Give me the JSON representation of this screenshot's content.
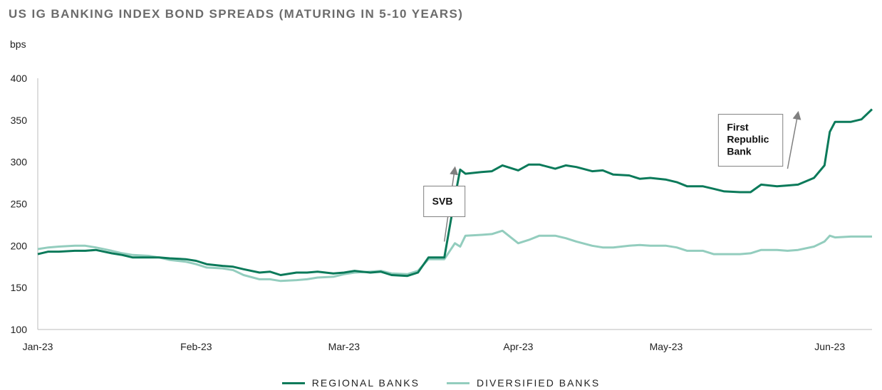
{
  "chart_data": {
    "type": "line",
    "title": "US IG BANKING INDEX BOND SPREADS (MATURING IN 5-10 YEARS)",
    "ylabel": "bps",
    "ylim": [
      100,
      400
    ],
    "yticks": [
      100,
      150,
      200,
      250,
      300,
      350,
      400
    ],
    "xlim": [
      "2023-01-02",
      "2023-06-09"
    ],
    "x_tick_labels": [
      {
        "date": "2023-01-02",
        "label": "Jan-23"
      },
      {
        "date": "2023-02-01",
        "label": "Feb-23"
      },
      {
        "date": "2023-03-01",
        "label": "Mar-23"
      },
      {
        "date": "2023-04-03",
        "label": "Apr-23"
      },
      {
        "date": "2023-05-01",
        "label": "May-23"
      },
      {
        "date": "2023-06-01",
        "label": "Jun-23"
      }
    ],
    "grid": false,
    "legend_placement": "bottom-center",
    "series": [
      {
        "name": "REGIONAL BANKS",
        "color": "#0b7a5a",
        "points": [
          [
            "2023-01-02",
            190
          ],
          [
            "2023-01-04",
            193
          ],
          [
            "2023-01-06",
            193
          ],
          [
            "2023-01-09",
            194
          ],
          [
            "2023-01-11",
            194
          ],
          [
            "2023-01-13",
            195
          ],
          [
            "2023-01-16",
            191
          ],
          [
            "2023-01-18",
            189
          ],
          [
            "2023-01-20",
            186
          ],
          [
            "2023-01-23",
            186
          ],
          [
            "2023-01-25",
            186
          ],
          [
            "2023-01-27",
            185
          ],
          [
            "2023-01-30",
            184
          ],
          [
            "2023-02-01",
            182
          ],
          [
            "2023-02-03",
            178
          ],
          [
            "2023-02-06",
            176
          ],
          [
            "2023-02-08",
            175
          ],
          [
            "2023-02-10",
            172
          ],
          [
            "2023-02-13",
            168
          ],
          [
            "2023-02-15",
            169
          ],
          [
            "2023-02-17",
            165
          ],
          [
            "2023-02-20",
            168
          ],
          [
            "2023-02-22",
            168
          ],
          [
            "2023-02-24",
            169
          ],
          [
            "2023-02-27",
            167
          ],
          [
            "2023-03-01",
            168
          ],
          [
            "2023-03-03",
            170
          ],
          [
            "2023-03-06",
            168
          ],
          [
            "2023-03-08",
            169
          ],
          [
            "2023-03-10",
            165
          ],
          [
            "2023-03-13",
            164
          ],
          [
            "2023-03-15",
            168
          ],
          [
            "2023-03-17",
            186
          ],
          [
            "2023-03-20",
            186
          ],
          [
            "2023-03-22",
            258
          ],
          [
            "2023-03-23",
            291
          ],
          [
            "2023-03-24",
            286
          ],
          [
            "2023-03-27",
            288
          ],
          [
            "2023-03-29",
            289
          ],
          [
            "2023-03-31",
            296
          ],
          [
            "2023-04-03",
            290
          ],
          [
            "2023-04-05",
            297
          ],
          [
            "2023-04-07",
            297
          ],
          [
            "2023-04-10",
            292
          ],
          [
            "2023-04-12",
            296
          ],
          [
            "2023-04-14",
            294
          ],
          [
            "2023-04-17",
            289
          ],
          [
            "2023-04-19",
            290
          ],
          [
            "2023-04-21",
            285
          ],
          [
            "2023-04-24",
            284
          ],
          [
            "2023-04-26",
            280
          ],
          [
            "2023-04-28",
            281
          ],
          [
            "2023-05-01",
            279
          ],
          [
            "2023-05-03",
            276
          ],
          [
            "2023-05-05",
            271
          ],
          [
            "2023-05-08",
            271
          ],
          [
            "2023-05-10",
            268
          ],
          [
            "2023-05-12",
            265
          ],
          [
            "2023-05-15",
            264
          ],
          [
            "2023-05-17",
            264
          ],
          [
            "2023-05-19",
            273
          ],
          [
            "2023-05-22",
            271
          ],
          [
            "2023-05-24",
            272
          ],
          [
            "2023-05-26",
            273
          ],
          [
            "2023-05-29",
            281
          ],
          [
            "2023-05-31",
            296
          ],
          [
            "2023-06-01",
            336
          ],
          [
            "2023-06-02",
            348
          ],
          [
            "2023-06-05",
            348
          ],
          [
            "2023-06-07",
            351
          ],
          [
            "2023-06-09",
            363
          ]
        ]
      },
      {
        "name": "DIVERSIFIED BANKS",
        "color": "#93cdbe",
        "points": [
          [
            "2023-01-02",
            196
          ],
          [
            "2023-01-04",
            198
          ],
          [
            "2023-01-06",
            199
          ],
          [
            "2023-01-09",
            200
          ],
          [
            "2023-01-11",
            200
          ],
          [
            "2023-01-13",
            198
          ],
          [
            "2023-01-16",
            194
          ],
          [
            "2023-01-18",
            191
          ],
          [
            "2023-01-20",
            189
          ],
          [
            "2023-01-23",
            188
          ],
          [
            "2023-01-25",
            186
          ],
          [
            "2023-01-27",
            183
          ],
          [
            "2023-01-30",
            181
          ],
          [
            "2023-02-01",
            178
          ],
          [
            "2023-02-03",
            174
          ],
          [
            "2023-02-06",
            173
          ],
          [
            "2023-02-08",
            171
          ],
          [
            "2023-02-10",
            165
          ],
          [
            "2023-02-13",
            160
          ],
          [
            "2023-02-15",
            160
          ],
          [
            "2023-02-17",
            158
          ],
          [
            "2023-02-20",
            159
          ],
          [
            "2023-02-22",
            160
          ],
          [
            "2023-02-24",
            162
          ],
          [
            "2023-02-27",
            163
          ],
          [
            "2023-03-01",
            166
          ],
          [
            "2023-03-03",
            168
          ],
          [
            "2023-03-06",
            169
          ],
          [
            "2023-03-08",
            170
          ],
          [
            "2023-03-10",
            167
          ],
          [
            "2023-03-13",
            166
          ],
          [
            "2023-03-15",
            170
          ],
          [
            "2023-03-17",
            184
          ],
          [
            "2023-03-20",
            184
          ],
          [
            "2023-03-22",
            203
          ],
          [
            "2023-03-23",
            199
          ],
          [
            "2023-03-24",
            212
          ],
          [
            "2023-03-27",
            213
          ],
          [
            "2023-03-29",
            214
          ],
          [
            "2023-03-31",
            218
          ],
          [
            "2023-04-03",
            203
          ],
          [
            "2023-04-05",
            207
          ],
          [
            "2023-04-07",
            212
          ],
          [
            "2023-04-10",
            212
          ],
          [
            "2023-04-12",
            209
          ],
          [
            "2023-04-14",
            205
          ],
          [
            "2023-04-17",
            200
          ],
          [
            "2023-04-19",
            198
          ],
          [
            "2023-04-21",
            198
          ],
          [
            "2023-04-24",
            200
          ],
          [
            "2023-04-26",
            201
          ],
          [
            "2023-04-28",
            200
          ],
          [
            "2023-05-01",
            200
          ],
          [
            "2023-05-03",
            198
          ],
          [
            "2023-05-05",
            194
          ],
          [
            "2023-05-08",
            194
          ],
          [
            "2023-05-10",
            190
          ],
          [
            "2023-05-12",
            190
          ],
          [
            "2023-05-15",
            190
          ],
          [
            "2023-05-17",
            191
          ],
          [
            "2023-05-19",
            195
          ],
          [
            "2023-05-22",
            195
          ],
          [
            "2023-05-24",
            194
          ],
          [
            "2023-05-26",
            195
          ],
          [
            "2023-05-29",
            199
          ],
          [
            "2023-05-31",
            205
          ],
          [
            "2023-06-01",
            212
          ],
          [
            "2023-06-02",
            210
          ],
          [
            "2023-06-05",
            211
          ],
          [
            "2023-06-07",
            211
          ],
          [
            "2023-06-09",
            211
          ]
        ]
      }
    ],
    "annotations": [
      {
        "text": "SVB",
        "date": "2023-03-20",
        "value": 253,
        "arrow_from": [
          "2023-03-20",
          205
        ],
        "arrow_to": [
          "2023-03-22",
          293
        ]
      },
      {
        "text": "First Republic Bank",
        "date": "2023-05-17",
        "value": 326,
        "arrow_from": [
          "2023-05-24",
          292
        ],
        "arrow_to": [
          "2023-05-26",
          359
        ]
      }
    ]
  }
}
